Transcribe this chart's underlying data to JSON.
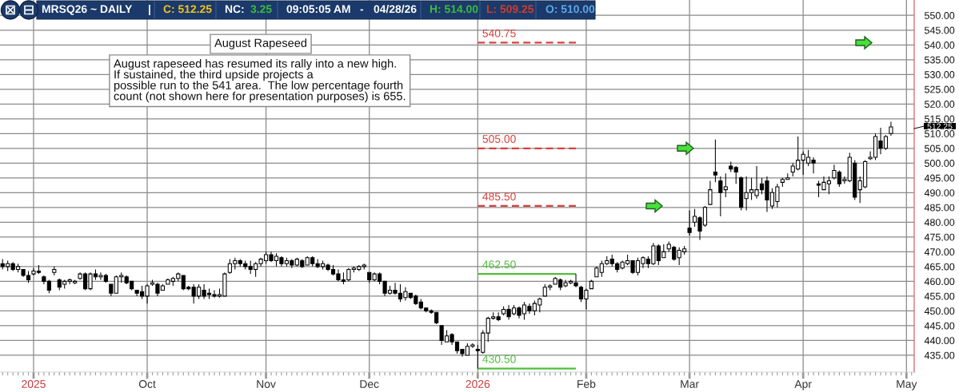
{
  "chart_data": {
    "type": "candlestick",
    "title": "August Rapeseed",
    "color": "#000000",
    "categories": [
      null,
      null,
      null,
      null,
      null,
      null,
      "2025",
      null,
      null,
      null,
      null,
      null,
      null,
      null,
      null,
      null,
      null,
      null,
      null,
      null,
      null,
      null,
      null,
      null,
      null,
      null,
      null,
      null,
      "Oct",
      null,
      null,
      null,
      null,
      null,
      null,
      null,
      null,
      null,
      null,
      null,
      null,
      null,
      null,
      null,
      null,
      null,
      null,
      null,
      null,
      null,
      null,
      "Nov",
      null,
      null,
      null,
      null,
      null,
      null,
      null,
      null,
      null,
      null,
      null,
      null,
      null,
      null,
      null,
      null,
      null,
      null,
      null,
      "Dec",
      null,
      null,
      null,
      null,
      null,
      null,
      null,
      null,
      null,
      null,
      null,
      null,
      null,
      null,
      null,
      null,
      null,
      null,
      null,
      null,
      "2026",
      null,
      null,
      null,
      null,
      null,
      null,
      null,
      null,
      null,
      null,
      null,
      null,
      null,
      null,
      null,
      null,
      null,
      null,
      null,
      null,
      "Feb",
      null,
      null,
      null,
      null,
      null,
      null,
      null,
      null,
      null,
      null,
      null,
      null,
      null,
      null,
      null,
      null,
      null,
      null,
      null,
      "Mar",
      null,
      null,
      null,
      null,
      null,
      null,
      null,
      null,
      null,
      null,
      null,
      null,
      null,
      null,
      null,
      null,
      null,
      null,
      null,
      null,
      null,
      "Apr",
      null,
      null,
      null,
      null,
      null,
      null,
      null,
      null,
      null,
      null,
      null,
      null,
      null,
      null,
      null,
      null,
      null,
      null,
      null,
      "May",
      null
    ],
    "ohlc": [
      [
        466,
        467.5,
        464,
        465
      ],
      [
        465,
        467,
        463.5,
        466
      ],
      [
        466,
        466.5,
        463.5,
        464
      ],
      [
        464,
        466,
        463,
        465
      ],
      [
        464,
        464,
        461.5,
        462
      ],
      [
        462,
        463.5,
        459.5,
        460.5
      ],
      [
        462.5,
        464.5,
        462,
        463.5
      ],
      [
        463.5,
        465.5,
        462.5,
        463
      ],
      [
        461.5,
        462,
        459,
        460
      ],
      [
        460,
        460.5,
        456,
        457
      ],
      [
        463,
        465,
        462,
        464
      ],
      [
        460.5,
        461,
        457,
        458
      ],
      [
        459,
        460.5,
        457.5,
        460
      ],
      [
        460,
        461,
        459,
        460.5
      ],
      [
        459.5,
        460.5,
        459,
        460
      ],
      [
        461,
        463,
        460.5,
        462.5
      ],
      [
        462.5,
        463,
        457,
        457.5
      ],
      [
        457.5,
        463,
        457,
        462.5
      ],
      [
        462.5,
        464,
        460.5,
        461.5
      ],
      [
        461.5,
        463,
        460.5,
        462
      ],
      [
        462,
        462.5,
        459.5,
        460
      ],
      [
        459,
        459,
        455,
        456
      ],
      [
        456,
        462,
        456,
        461.5
      ],
      [
        461.5,
        463,
        459.5,
        462
      ],
      [
        461.5,
        462,
        459,
        459.5
      ],
      [
        460,
        460,
        457,
        457.5
      ],
      [
        457,
        457,
        455,
        456
      ],
      [
        456.5,
        458.5,
        454,
        455
      ],
      [
        455,
        459,
        452.5,
        458.5
      ],
      [
        459,
        460.5,
        458.5,
        459.5
      ],
      [
        459,
        459.5,
        455,
        456
      ],
      [
        457,
        459,
        457,
        458.5
      ],
      [
        459,
        461,
        459,
        460.5
      ],
      [
        460,
        461.5,
        458.5,
        461
      ],
      [
        461,
        463,
        460,
        462.5
      ],
      [
        462,
        462,
        457,
        457.5
      ],
      [
        458,
        458.5,
        457,
        457.5
      ],
      [
        458,
        459,
        452.5,
        455
      ],
      [
        455,
        459,
        454,
        458
      ],
      [
        457,
        459,
        454,
        455
      ],
      [
        456,
        457.5,
        454,
        455.5
      ],
      [
        455.5,
        457,
        454.5,
        455
      ],
      [
        455,
        457.5,
        454.5,
        455.5
      ],
      [
        455,
        463,
        455,
        462.5
      ],
      [
        463,
        467.5,
        462.5,
        466
      ],
      [
        466,
        468,
        464,
        467
      ],
      [
        467,
        467.5,
        465,
        466
      ],
      [
        466,
        467,
        464,
        465
      ],
      [
        465,
        467,
        462.5,
        464
      ],
      [
        464,
        466.5,
        461.5,
        466
      ],
      [
        466,
        468,
        465,
        467.5
      ],
      [
        467,
        470,
        466,
        469
      ],
      [
        469,
        470,
        466.5,
        467
      ],
      [
        467,
        469.5,
        465,
        468.5
      ],
      [
        468,
        468.5,
        465,
        466
      ],
      [
        466,
        468,
        465,
        467
      ],
      [
        467,
        467.5,
        464.5,
        465.5
      ],
      [
        465.5,
        468,
        465,
        467.5
      ],
      [
        467,
        467.5,
        464.5,
        465
      ],
      [
        465.5,
        468.5,
        465.5,
        468
      ],
      [
        468,
        468.5,
        465,
        466
      ],
      [
        466,
        467.5,
        464.5,
        465
      ],
      [
        465,
        467,
        464,
        466
      ],
      [
        465.5,
        466,
        463.5,
        464
      ],
      [
        464,
        465.5,
        462,
        462.5
      ],
      [
        462.5,
        464,
        460,
        460.5
      ],
      [
        460.5,
        463,
        459,
        460
      ],
      [
        460.5,
        464.5,
        460,
        464
      ],
      [
        464,
        465,
        463,
        464.5
      ],
      [
        464,
        465.5,
        463.5,
        465
      ],
      [
        465,
        466,
        464,
        465.5
      ],
      [
        463,
        463,
        459.5,
        460.5
      ],
      [
        460.5,
        463,
        460,
        462.5
      ],
      [
        462.5,
        463,
        459,
        460
      ],
      [
        460,
        460,
        455,
        456
      ],
      [
        456,
        458.5,
        455.5,
        457
      ],
      [
        457,
        459.5,
        455.5,
        456
      ],
      [
        456,
        459,
        453,
        454
      ],
      [
        454.5,
        458,
        453.5,
        456.5
      ],
      [
        456,
        456,
        454,
        454.5
      ],
      [
        455,
        455.5,
        452,
        452.5
      ],
      [
        453,
        454,
        450.5,
        451
      ],
      [
        451,
        451,
        449.5,
        450
      ],
      [
        450,
        450.5,
        449,
        449.5
      ],
      [
        449.5,
        449.5,
        445.5,
        446
      ],
      [
        445,
        445,
        438.5,
        440
      ],
      [
        439.5,
        443.5,
        439.5,
        441.5
      ],
      [
        442,
        442.5,
        438.5,
        439.5
      ],
      [
        439.5,
        439.5,
        435.5,
        436.5
      ],
      [
        437,
        437,
        434.5,
        435.5
      ],
      [
        435,
        439,
        435,
        438
      ],
      [
        438,
        439,
        437.5,
        438.5
      ],
      [
        437,
        438.5,
        430.5,
        436.5
      ],
      [
        436,
        443.5,
        435.5,
        442.5
      ],
      [
        442.5,
        448,
        439.5,
        447.5
      ],
      [
        447.5,
        449.5,
        447,
        448
      ],
      [
        448,
        449.5,
        446.5,
        447
      ],
      [
        449,
        451.5,
        448.5,
        450.5
      ],
      [
        450.5,
        452,
        447,
        448
      ],
      [
        449,
        452,
        448.5,
        451
      ],
      [
        451,
        451.5,
        447.5,
        448.5
      ],
      [
        449,
        453,
        447,
        452
      ],
      [
        451.5,
        452.5,
        449,
        450
      ],
      [
        450,
        453.5,
        448.5,
        452.5
      ],
      [
        452,
        454.5,
        449.5,
        454
      ],
      [
        455,
        459,
        455,
        458
      ],
      [
        458,
        459,
        457,
        458.5
      ],
      [
        459,
        461.5,
        459,
        461
      ],
      [
        460.5,
        461,
        457,
        458
      ],
      [
        458.5,
        460.5,
        458,
        459.5
      ],
      [
        459.5,
        460.5,
        459,
        460
      ],
      [
        459.5,
        462.5,
        458,
        458.5
      ],
      [
        458,
        458.5,
        453,
        454
      ],
      [
        454,
        457.5,
        450.5,
        457
      ],
      [
        457.5,
        460.5,
        457.5,
        460
      ],
      [
        461.5,
        465,
        461.5,
        464.5
      ],
      [
        463,
        467,
        461.5,
        466
      ],
      [
        466,
        468.5,
        465.5,
        467
      ],
      [
        467.5,
        469,
        465,
        466
      ],
      [
        466,
        466.5,
        463,
        464
      ],
      [
        464.5,
        467,
        464,
        466.5
      ],
      [
        466,
        469,
        465.5,
        467
      ],
      [
        467,
        467,
        462.5,
        463
      ],
      [
        463,
        468,
        462,
        467
      ],
      [
        466,
        468.5,
        464.5,
        468
      ],
      [
        467.5,
        468.5,
        464.5,
        466
      ],
      [
        466,
        473,
        465.5,
        472
      ],
      [
        472,
        472.5,
        465.5,
        467
      ],
      [
        468,
        472.5,
        468,
        470
      ],
      [
        471,
        473.5,
        470,
        472.5
      ],
      [
        471.5,
        472,
        467,
        467.5
      ],
      [
        468,
        471.5,
        465.5,
        470.5
      ],
      [
        470,
        472,
        469,
        471
      ],
      [
        478,
        484,
        475.5,
        476.5
      ],
      [
        480,
        484.5,
        478.5,
        482
      ],
      [
        481.5,
        482,
        474,
        477
      ],
      [
        479,
        485.5,
        478.5,
        485
      ],
      [
        486,
        494,
        486,
        491
      ],
      [
        497,
        508,
        493.5,
        496
      ],
      [
        494,
        495.5,
        482,
        490
      ],
      [
        491,
        496.5,
        488.5,
        492
      ],
      [
        499,
        500.5,
        497,
        498
      ],
      [
        498.5,
        499,
        493,
        497
      ],
      [
        495,
        495.5,
        484,
        485
      ],
      [
        488,
        495.5,
        484,
        490
      ],
      [
        490,
        495,
        487.5,
        491
      ],
      [
        489,
        499,
        488,
        491
      ],
      [
        493,
        495,
        489.5,
        491
      ],
      [
        494,
        495.5,
        483.5,
        487.5
      ],
      [
        485.5,
        491.5,
        484.5,
        490
      ],
      [
        487,
        493,
        485,
        492
      ],
      [
        493.5,
        495,
        492,
        494.5
      ],
      [
        494.5,
        496.5,
        494.5,
        495
      ],
      [
        497,
        500,
        495.5,
        499
      ],
      [
        498,
        509,
        497.5,
        501
      ],
      [
        501,
        504,
        496,
        503
      ],
      [
        500,
        504.5,
        499,
        502
      ],
      [
        501,
        502,
        496.5,
        500
      ],
      [
        493,
        494,
        488.5,
        492.5
      ],
      [
        491,
        495.5,
        491,
        493.5
      ],
      [
        493,
        495.5,
        489.5,
        494
      ],
      [
        495,
        499.5,
        494.5,
        497.5
      ],
      [
        497,
        497.5,
        492,
        493
      ],
      [
        494,
        495.5,
        493,
        494.5
      ],
      [
        494,
        503.5,
        493.5,
        502
      ],
      [
        500,
        501,
        487.5,
        488.5
      ],
      [
        491,
        495.5,
        486.5,
        494
      ],
      [
        492,
        501,
        491.5,
        500.5
      ],
      [
        501.5,
        504,
        501,
        502
      ],
      [
        502,
        510,
        501,
        509
      ],
      [
        507.5,
        512,
        503,
        505
      ],
      [
        505,
        509.5,
        504.5,
        509
      ],
      [
        510,
        514,
        509.25,
        512.25
      ],
      null,
      null,
      null,
      null
    ],
    "series": [
      {
        "type": "line",
        "name": "540.75",
        "color": "#d9413b",
        "line_style": "dashed",
        "values": [
          null,
          null,
          null,
          null,
          null,
          null,
          null,
          null,
          null,
          null,
          null,
          null,
          null,
          null,
          null,
          null,
          null,
          null,
          null,
          null,
          null,
          null,
          null,
          null,
          null,
          null,
          null,
          null,
          null,
          null,
          null,
          null,
          null,
          null,
          null,
          null,
          null,
          null,
          null,
          null,
          null,
          null,
          null,
          null,
          null,
          null,
          null,
          null,
          null,
          null,
          null,
          null,
          null,
          null,
          null,
          null,
          null,
          null,
          null,
          null,
          null,
          null,
          null,
          null,
          null,
          null,
          null,
          null,
          null,
          null,
          null,
          null,
          null,
          null,
          null,
          null,
          null,
          null,
          null,
          null,
          null,
          null,
          null,
          null,
          null,
          null,
          null,
          null,
          null,
          null,
          null,
          null,
          540.75,
          540.75,
          540.75,
          540.75,
          540.75,
          540.75,
          540.75,
          540.75,
          540.75,
          540.75,
          540.75,
          540.75,
          540.75,
          540.75,
          540.75,
          540.75,
          540.75,
          540.75,
          540.75,
          540.75,
          null,
          null,
          null,
          null,
          null,
          null,
          null,
          null,
          null,
          null,
          null,
          null,
          null,
          null,
          null,
          null,
          null,
          null,
          null,
          null,
          null,
          null,
          null,
          null,
          null,
          null,
          null,
          null,
          null,
          null,
          null,
          null,
          null,
          null,
          null,
          null,
          null,
          null,
          null,
          null,
          null,
          null,
          null,
          null,
          null,
          null,
          null,
          null,
          null,
          null,
          null,
          null,
          null,
          null,
          null,
          null,
          null,
          null,
          null,
          null,
          null,
          null,
          null,
          null,
          null
        ]
      },
      {
        "type": "line",
        "name": "505.00",
        "color": "#d9413b",
        "line_style": "dashed",
        "values": [
          null,
          null,
          null,
          null,
          null,
          null,
          null,
          null,
          null,
          null,
          null,
          null,
          null,
          null,
          null,
          null,
          null,
          null,
          null,
          null,
          null,
          null,
          null,
          null,
          null,
          null,
          null,
          null,
          null,
          null,
          null,
          null,
          null,
          null,
          null,
          null,
          null,
          null,
          null,
          null,
          null,
          null,
          null,
          null,
          null,
          null,
          null,
          null,
          null,
          null,
          null,
          null,
          null,
          null,
          null,
          null,
          null,
          null,
          null,
          null,
          null,
          null,
          null,
          null,
          null,
          null,
          null,
          null,
          null,
          null,
          null,
          null,
          null,
          null,
          null,
          null,
          null,
          null,
          null,
          null,
          null,
          null,
          null,
          null,
          null,
          null,
          null,
          null,
          null,
          null,
          null,
          null,
          505,
          505,
          505,
          505,
          505,
          505,
          505,
          505,
          505,
          505,
          505,
          505,
          505,
          505,
          505,
          505,
          505,
          505,
          505,
          505,
          null,
          null,
          null,
          null,
          null,
          null,
          null,
          null,
          null,
          null,
          null,
          null,
          null,
          null,
          null,
          null,
          null,
          null,
          null,
          null,
          null,
          null,
          null,
          null,
          null,
          null,
          null,
          null,
          null,
          null,
          null,
          null,
          null,
          null,
          null,
          null,
          null,
          null,
          null,
          null,
          null,
          null,
          null,
          null,
          null,
          null,
          null,
          null,
          null,
          null,
          null,
          null,
          null,
          null,
          null,
          null,
          null,
          null,
          null,
          null,
          null,
          null,
          null,
          null,
          null
        ]
      },
      {
        "type": "line",
        "name": "485.50",
        "color": "#d9413b",
        "line_style": "dashed",
        "values": [
          null,
          null,
          null,
          null,
          null,
          null,
          null,
          null,
          null,
          null,
          null,
          null,
          null,
          null,
          null,
          null,
          null,
          null,
          null,
          null,
          null,
          null,
          null,
          null,
          null,
          null,
          null,
          null,
          null,
          null,
          null,
          null,
          null,
          null,
          null,
          null,
          null,
          null,
          null,
          null,
          null,
          null,
          null,
          null,
          null,
          null,
          null,
          null,
          null,
          null,
          null,
          null,
          null,
          null,
          null,
          null,
          null,
          null,
          null,
          null,
          null,
          null,
          null,
          null,
          null,
          null,
          null,
          null,
          null,
          null,
          null,
          null,
          null,
          null,
          null,
          null,
          null,
          null,
          null,
          null,
          null,
          null,
          null,
          null,
          null,
          null,
          null,
          null,
          null,
          null,
          null,
          null,
          485.5,
          485.5,
          485.5,
          485.5,
          485.5,
          485.5,
          485.5,
          485.5,
          485.5,
          485.5,
          485.5,
          485.5,
          485.5,
          485.5,
          485.5,
          485.5,
          485.5,
          485.5,
          485.5,
          485.5,
          null,
          null,
          null,
          null,
          null,
          null,
          null,
          null,
          null,
          null,
          null,
          null,
          null,
          null,
          null,
          null,
          null,
          null,
          null,
          null,
          null,
          null,
          null,
          null,
          null,
          null,
          null,
          null,
          null,
          null,
          null,
          null,
          null,
          null,
          null,
          null,
          null,
          null,
          null,
          null,
          null,
          null,
          null,
          null,
          null,
          null,
          null,
          null,
          null,
          null,
          null,
          null,
          null,
          null,
          null,
          null,
          null,
          null,
          null,
          null,
          null,
          null,
          null,
          null,
          null
        ]
      },
      {
        "type": "line",
        "name": "462.50",
        "color": "#4fbf3a",
        "line_style": "solid",
        "values": [
          null,
          null,
          null,
          null,
          null,
          null,
          null,
          null,
          null,
          null,
          null,
          null,
          null,
          null,
          null,
          null,
          null,
          null,
          null,
          null,
          null,
          null,
          null,
          null,
          null,
          null,
          null,
          null,
          null,
          null,
          null,
          null,
          null,
          null,
          null,
          null,
          null,
          null,
          null,
          null,
          null,
          null,
          null,
          null,
          null,
          null,
          null,
          null,
          null,
          null,
          null,
          null,
          null,
          null,
          null,
          null,
          null,
          null,
          null,
          null,
          null,
          null,
          null,
          null,
          null,
          null,
          null,
          null,
          null,
          null,
          null,
          null,
          null,
          null,
          null,
          null,
          null,
          null,
          null,
          null,
          null,
          null,
          null,
          null,
          null,
          null,
          null,
          null,
          null,
          null,
          null,
          null,
          462.5,
          462.5,
          462.5,
          462.5,
          462.5,
          462.5,
          462.5,
          462.5,
          462.5,
          462.5,
          462.5,
          462.5,
          462.5,
          462.5,
          462.5,
          462.5,
          462.5,
          462.5,
          462.5,
          462.5,
          null,
          null,
          null,
          null,
          null,
          null,
          null,
          null,
          null,
          null,
          null,
          null,
          null,
          null,
          null,
          null,
          null,
          null,
          null,
          null,
          null,
          null,
          null,
          null,
          null,
          null,
          null,
          null,
          null,
          null,
          null,
          null,
          null,
          null,
          null,
          null,
          null,
          null,
          null,
          null,
          null,
          null,
          null,
          null,
          null,
          null,
          null,
          null,
          null,
          null,
          null,
          null,
          null,
          null,
          null,
          null,
          null,
          null,
          null,
          null,
          null,
          null,
          null,
          null,
          null
        ]
      },
      {
        "type": "line",
        "name": "430.50",
        "color": "#4fbf3a",
        "line_style": "solid",
        "values": [
          null,
          null,
          null,
          null,
          null,
          null,
          null,
          null,
          null,
          null,
          null,
          null,
          null,
          null,
          null,
          null,
          null,
          null,
          null,
          null,
          null,
          null,
          null,
          null,
          null,
          null,
          null,
          null,
          null,
          null,
          null,
          null,
          null,
          null,
          null,
          null,
          null,
          null,
          null,
          null,
          null,
          null,
          null,
          null,
          null,
          null,
          null,
          null,
          null,
          null,
          null,
          null,
          null,
          null,
          null,
          null,
          null,
          null,
          null,
          null,
          null,
          null,
          null,
          null,
          null,
          null,
          null,
          null,
          null,
          null,
          null,
          null,
          null,
          null,
          null,
          null,
          null,
          null,
          null,
          null,
          null,
          null,
          null,
          null,
          null,
          null,
          null,
          null,
          null,
          null,
          null,
          null,
          430.5,
          430.5,
          430.5,
          430.5,
          430.5,
          430.5,
          430.5,
          430.5,
          430.5,
          430.5,
          430.5,
          430.5,
          430.5,
          430.5,
          430.5,
          430.5,
          430.5,
          430.5,
          430.5,
          430.5,
          null,
          null,
          null,
          null,
          null,
          null,
          null,
          null,
          null,
          null,
          null,
          null,
          null,
          null,
          null,
          null,
          null,
          null,
          null,
          null,
          null,
          null,
          null,
          null,
          null,
          null,
          null,
          null,
          null,
          null,
          null,
          null,
          null,
          null,
          null,
          null,
          null,
          null,
          null,
          null,
          null,
          null,
          null,
          null,
          null,
          null,
          null,
          null,
          null,
          null,
          null,
          null,
          null,
          null,
          null,
          null,
          null,
          null,
          null,
          null,
          null,
          null,
          null,
          null,
          null
        ]
      }
    ],
    "ylim": [
      429.3,
      555.2
    ],
    "yticks": [
      {
        "value": 435,
        "label": "435.00"
      },
      {
        "value": 440,
        "label": "440.00"
      },
      {
        "value": 445,
        "label": "445.00"
      },
      {
        "value": 450,
        "label": "450.00"
      },
      {
        "value": 455,
        "label": "455.00"
      },
      {
        "value": 460,
        "label": "460.00"
      },
      {
        "value": 465,
        "label": "465.00"
      },
      {
        "value": 470,
        "label": "470.00"
      },
      {
        "value": 475,
        "label": "475.00"
      },
      {
        "value": 480,
        "label": "480.00"
      },
      {
        "value": 485,
        "label": "485.00"
      },
      {
        "value": 490,
        "label": "490.00"
      },
      {
        "value": 495,
        "label": "495.00"
      },
      {
        "value": 500,
        "label": "500.00"
      },
      {
        "value": 505,
        "label": "505.00"
      },
      {
        "value": 510,
        "label": "510.00"
      },
      {
        "value": 515,
        "label": "515.00"
      },
      {
        "value": 520,
        "label": "520.00"
      },
      {
        "value": 525,
        "label": "525.00"
      },
      {
        "value": 530,
        "label": "530.00"
      },
      {
        "value": 535,
        "label": "535.00"
      },
      {
        "value": 540,
        "label": "540.00"
      },
      {
        "value": 545,
        "label": "545.00"
      },
      {
        "value": 550,
        "label": "550.00"
      }
    ],
    "grid": true,
    "annotations": [
      "August rapeseed has resumed its rally into a new high.\nIf sustained, the third upside projects a\npossible run to the 541 area.  The low percentage fourth\ncount (not shown here for presentation purposes) is 655.",
      "MRSQ26 ~ DAILY",
      "|",
      "C: 512.25",
      "NC:",
      "3.25",
      "09:05:05 AM",
      "-",
      "04/28/26",
      "H: 514.00",
      "L: 509.25",
      "O: 510.00",
      "512.25"
    ]
  }
}
